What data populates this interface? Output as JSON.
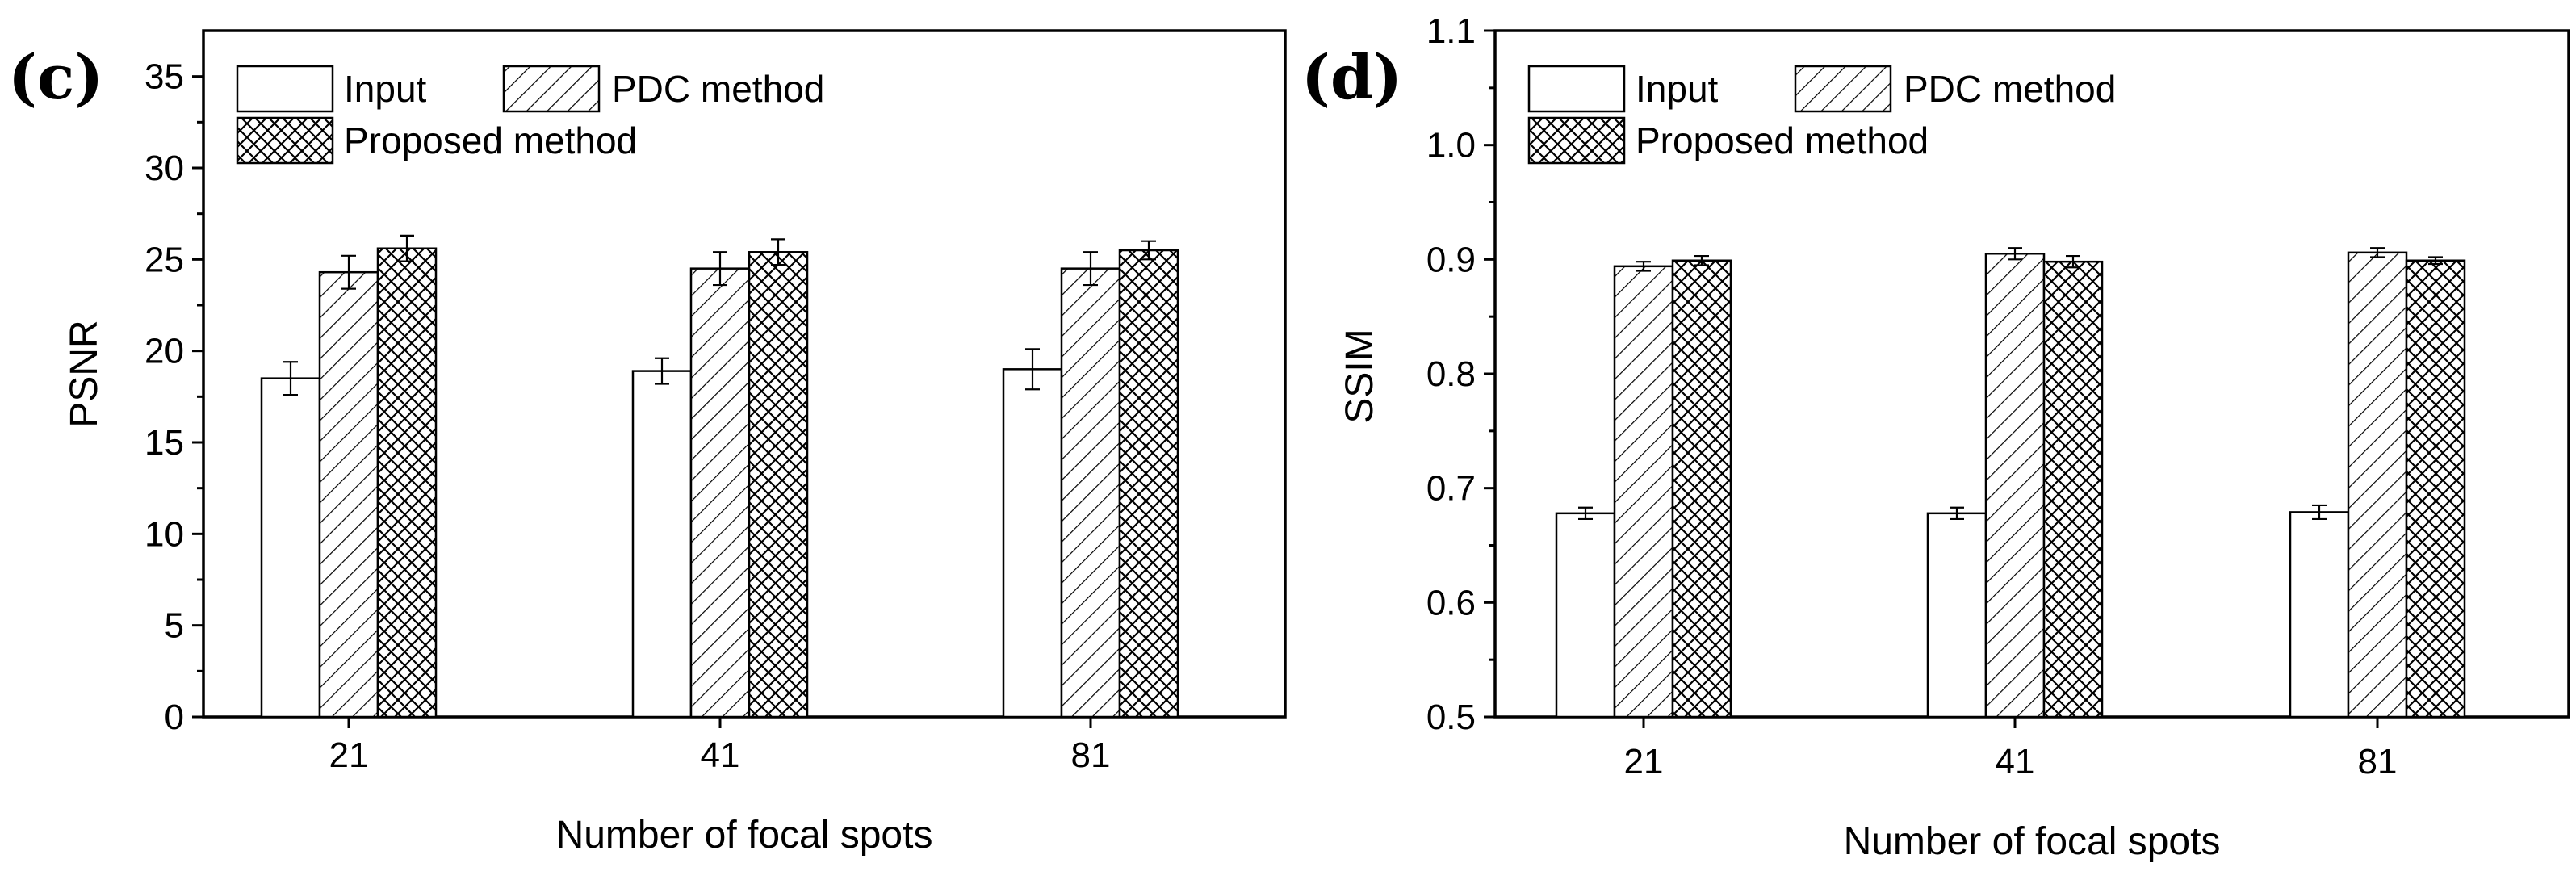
{
  "chart_data": [
    {
      "type": "bar",
      "panel_label": "(c)",
      "categories": [
        "21",
        "41",
        "81"
      ],
      "series": [
        {
          "name": "Input",
          "pattern": "none",
          "values": [
            18.5,
            18.9,
            19.0
          ],
          "errors": [
            0.9,
            0.7,
            1.1
          ]
        },
        {
          "name": "PDC method",
          "pattern": "diagonal",
          "values": [
            24.3,
            24.5,
            24.5
          ],
          "errors": [
            0.9,
            0.9,
            0.9
          ]
        },
        {
          "name": "Proposed method",
          "pattern": "crosshatch",
          "values": [
            25.6,
            25.4,
            25.5
          ],
          "errors": [
            0.7,
            0.7,
            0.5
          ]
        }
      ],
      "xlabel": "Number of focal spots",
      "ylabel": "PSNR",
      "ylim": [
        0,
        37.5
      ],
      "yticks": [
        "0",
        "5",
        "10",
        "15",
        "20",
        "25",
        "30",
        "35"
      ],
      "ytick_values": [
        0,
        5,
        10,
        15,
        20,
        25,
        30,
        35
      ],
      "legend_position": "top-left"
    },
    {
      "type": "bar",
      "panel_label": "(d)",
      "categories": [
        "21",
        "41",
        "81"
      ],
      "series": [
        {
          "name": "Input",
          "pattern": "none",
          "values": [
            0.678,
            0.678,
            0.679
          ],
          "errors": [
            0.005,
            0.005,
            0.006
          ]
        },
        {
          "name": "PDC method",
          "pattern": "diagonal",
          "values": [
            0.894,
            0.905,
            0.906
          ],
          "errors": [
            0.004,
            0.005,
            0.004
          ]
        },
        {
          "name": "Proposed method",
          "pattern": "crosshatch",
          "values": [
            0.899,
            0.898,
            0.899
          ],
          "errors": [
            0.004,
            0.005,
            0.003
          ]
        }
      ],
      "xlabel": "Number of focal spots",
      "ylabel": "SSIM",
      "ylim": [
        0.5,
        1.1
      ],
      "yticks": [
        "0.5",
        "0.6",
        "0.7",
        "0.8",
        "0.9",
        "1.0",
        "1.1"
      ],
      "ytick_values": [
        0.5,
        0.6,
        0.7,
        0.8,
        0.9,
        1.0,
        1.1
      ],
      "legend_position": "top-left"
    }
  ]
}
